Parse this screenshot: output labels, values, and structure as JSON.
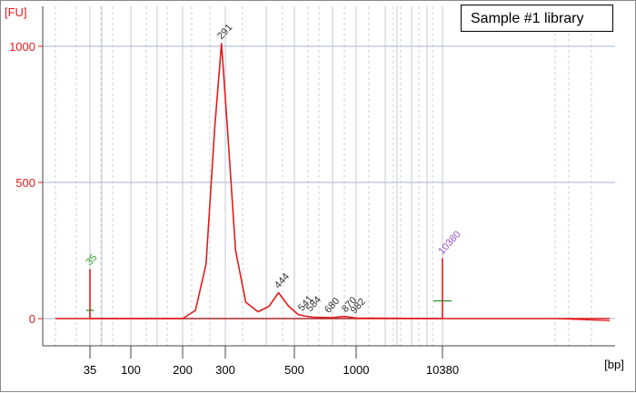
{
  "chart_data": {
    "type": "line",
    "title": "",
    "legend_text": "Sample #1 library",
    "y_unit": "[FU]",
    "x_unit": "[bp]",
    "ylim": [
      -40,
      1100
    ],
    "y_ticks": [
      0,
      500,
      1000
    ],
    "x_ticks": [
      "35",
      "100",
      "200",
      "300",
      "500",
      "1000",
      "10380"
    ],
    "line_color": "#e21b1b",
    "series": [
      {
        "points": [
          [
            35,
            0
          ],
          [
            35,
            180
          ],
          [
            35,
            0
          ],
          [
            200,
            0
          ],
          [
            230,
            30
          ],
          [
            255,
            200
          ],
          [
            275,
            700
          ],
          [
            291,
            1010
          ],
          [
            305,
            700
          ],
          [
            325,
            250
          ],
          [
            350,
            60
          ],
          [
            380,
            25
          ],
          [
            410,
            45
          ],
          [
            444,
            95
          ],
          [
            480,
            45
          ],
          [
            520,
            15
          ],
          [
            550,
            10
          ],
          [
            600,
            5
          ],
          [
            700,
            3
          ],
          [
            850,
            8
          ],
          [
            1000,
            2
          ],
          [
            10380,
            0
          ],
          [
            10380,
            220
          ],
          [
            10380,
            0
          ]
        ]
      }
    ],
    "peak_labels": [
      {
        "text": "35",
        "x": 35,
        "y": 180,
        "color": "#2ca02c"
      },
      {
        "text": "291",
        "x": 291,
        "y": 1010,
        "color": "#333333"
      },
      {
        "text": "444",
        "x": 444,
        "y": 95,
        "color": "#333333"
      },
      {
        "text": "541",
        "x": 541,
        "y": 12,
        "color": "#333333"
      },
      {
        "text": "584",
        "x": 584,
        "y": 10,
        "color": "#333333"
      },
      {
        "text": "680",
        "x": 680,
        "y": 5,
        "color": "#333333"
      },
      {
        "text": "870",
        "x": 870,
        "y": 8,
        "color": "#333333"
      },
      {
        "text": "982",
        "x": 982,
        "y": 3,
        "color": "#333333"
      },
      {
        "text": "10380",
        "x": 10380,
        "y": 220,
        "color": "#9b4fd6"
      }
    ]
  }
}
